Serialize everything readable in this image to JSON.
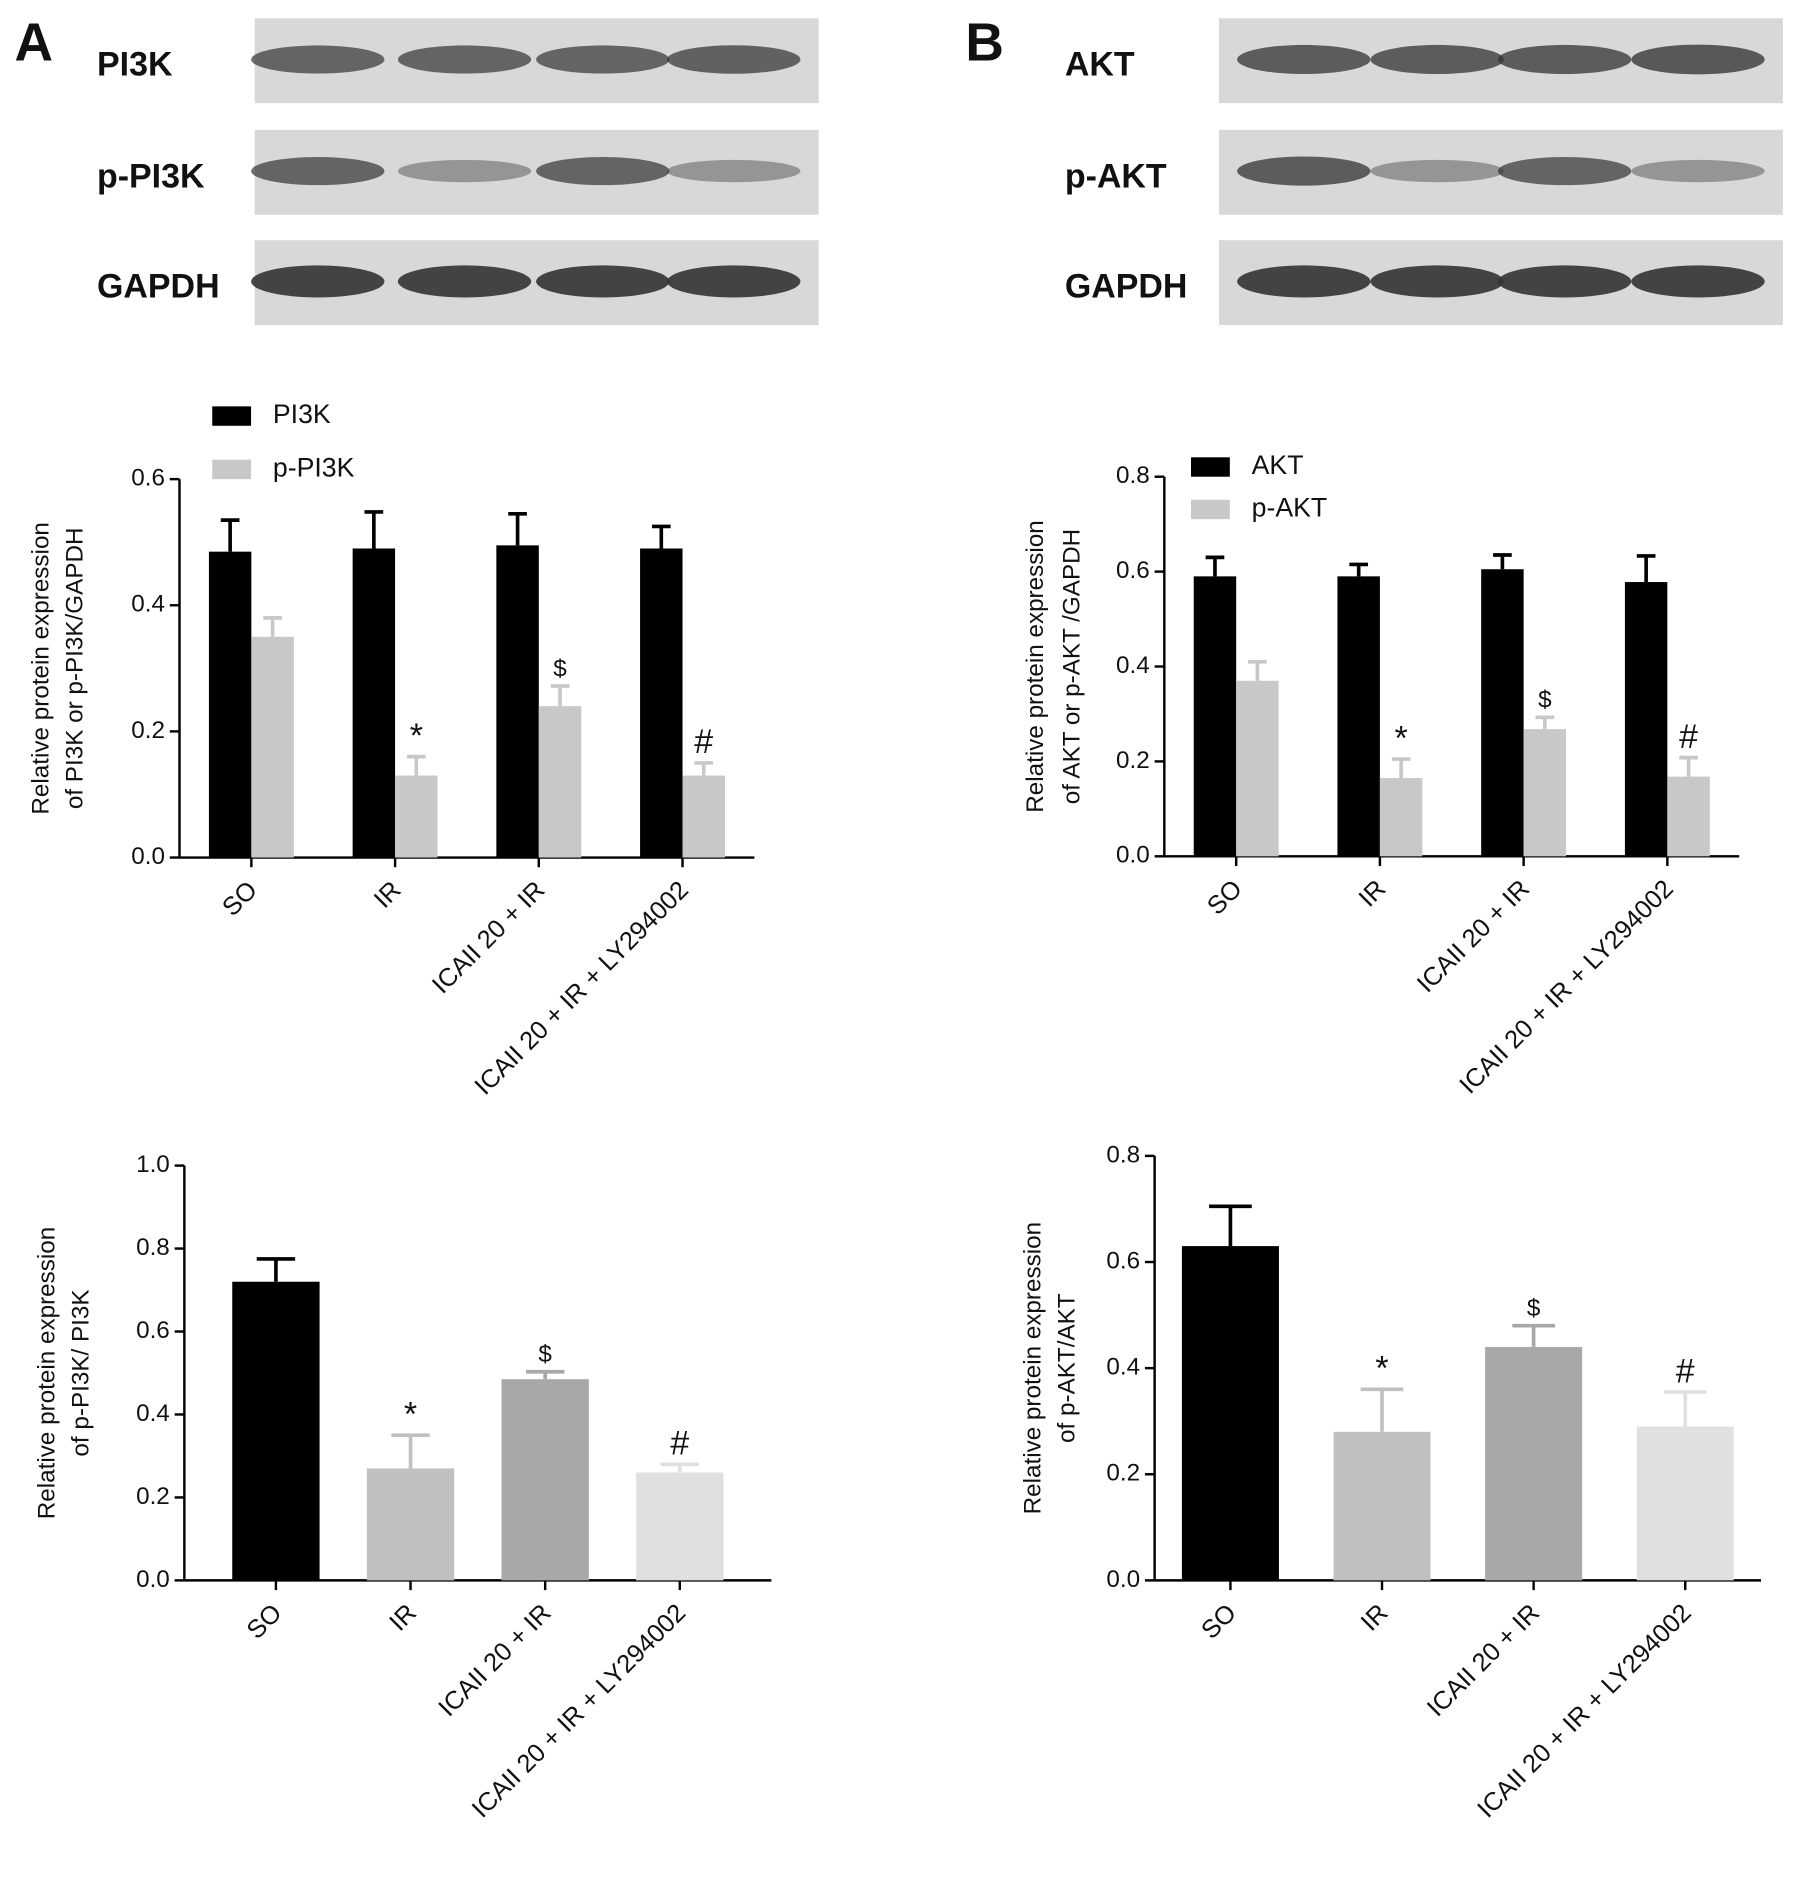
{
  "panels": [
    {
      "label": "A",
      "blot_labels": [
        "PI3K",
        "p-PI3K",
        "GAPDH"
      ]
    },
    {
      "label": "B",
      "blot_labels": [
        "AKT",
        "p-AKT",
        "GAPDH"
      ]
    }
  ],
  "chart_data": [
    {
      "type": "grouped_bar",
      "ylabel": [
        "Relative protein expression",
        "of  PI3K or p-PI3K/GAPDH"
      ],
      "categories": [
        "SO",
        "IR",
        "ICAII 20 + IR",
        "ICAII 20 + IR + LY294002"
      ],
      "series": [
        {
          "name": "PI3K",
          "color": "#000000",
          "values": [
            0.485,
            0.49,
            0.495,
            0.49
          ],
          "errors": [
            0.05,
            0.058,
            0.05,
            0.035
          ]
        },
        {
          "name": "p-PI3K",
          "color": "#c8c8c8",
          "values": [
            0.35,
            0.13,
            0.24,
            0.13
          ],
          "errors": [
            0.03,
            0.03,
            0.032,
            0.02
          ],
          "annotations": [
            null,
            "*",
            "$",
            "#"
          ]
        }
      ],
      "ylim": [
        0,
        0.6
      ],
      "yticks": [
        {
          "value": 0,
          "label": "0.0"
        },
        0.2,
        0.4,
        0.6
      ]
    },
    {
      "type": "grouped_bar",
      "ylabel": [
        "Relative protein expression",
        "of AKT or p-AKT /GAPDH"
      ],
      "categories": [
        "SO",
        "IR",
        "ICAII 20 + IR",
        "ICAII 20 + IR + LY294002"
      ],
      "series": [
        {
          "name": "AKT",
          "color": "#000000",
          "values": [
            0.59,
            0.59,
            0.605,
            0.578
          ],
          "errors": [
            0.04,
            0.025,
            0.03,
            0.055
          ]
        },
        {
          "name": "p-AKT",
          "color": "#c8c8c8",
          "values": [
            0.37,
            0.165,
            0.268,
            0.168
          ],
          "errors": [
            0.04,
            0.04,
            0.025,
            0.04
          ],
          "annotations": [
            null,
            "*",
            "$",
            "#"
          ]
        }
      ],
      "ylim": [
        0,
        0.8
      ],
      "yticks": [
        {
          "value": 0,
          "label": "0.0"
        },
        0.2,
        0.4,
        0.6,
        0.8
      ]
    },
    {
      "type": "bar",
      "ylabel": [
        "Relative protein expression",
        "of  p-PI3K/ PI3K"
      ],
      "categories": [
        "SO",
        "IR",
        "ICAII 20 + IR",
        "ICAII 20 + IR + LY294002"
      ],
      "values": [
        0.72,
        0.27,
        0.485,
        0.26
      ],
      "errors": [
        0.055,
        0.08,
        0.018,
        0.02
      ],
      "colors": [
        "#000000",
        "#c0c0c0",
        "#a8a8a8",
        "#e0e0e0"
      ],
      "annotations": [
        null,
        "*",
        "$",
        "#"
      ],
      "ylim": [
        0,
        1.0
      ],
      "yticks": [
        {
          "value": 0,
          "label": "0.0"
        },
        0.2,
        0.4,
        0.6,
        0.8,
        {
          "value": 1.0,
          "label": "1.0"
        }
      ]
    },
    {
      "type": "bar",
      "ylabel": [
        "Relative protein expression",
        "of  p-AKT/AKT"
      ],
      "categories": [
        "SO",
        "IR",
        "ICAII 20 + IR",
        "ICAII 20 + IR + LY294002"
      ],
      "values": [
        0.63,
        0.28,
        0.44,
        0.29
      ],
      "errors": [
        0.075,
        0.08,
        0.04,
        0.065
      ],
      "colors": [
        "#000000",
        "#c0c0c0",
        "#a8a8a8",
        "#e0e0e0"
      ],
      "annotations": [
        null,
        "*",
        "$",
        "#"
      ],
      "ylim": [
        0,
        0.8
      ],
      "yticks": [
        {
          "value": 0,
          "label": "0.0"
        },
        0.2,
        0.4,
        0.6,
        0.8
      ]
    }
  ]
}
